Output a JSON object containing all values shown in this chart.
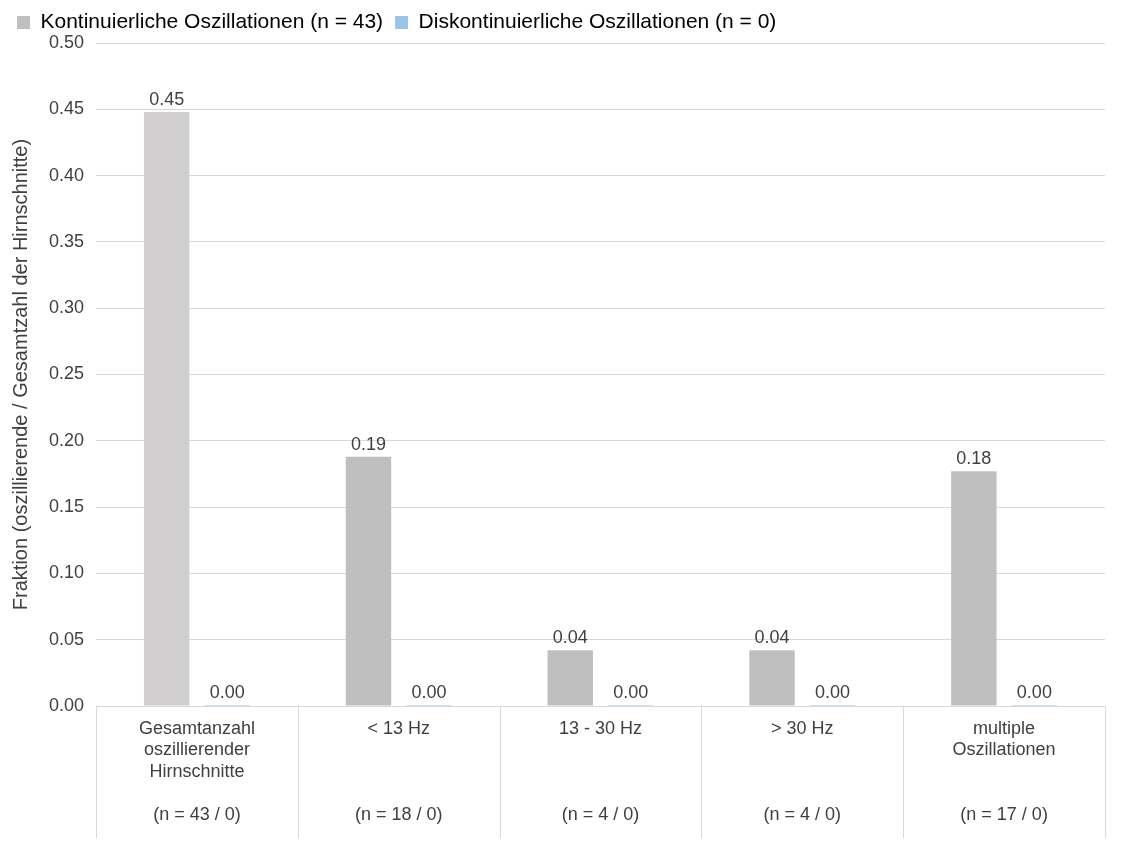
{
  "chart_data": {
    "type": "bar",
    "ylabel": "Fraktion (oszillierende / Gesamtzahl der Hirnschnitte)",
    "categories": [
      "Gesamtanzahl\noszillierender\nHirnschnitte\n(n = 43 / 0)",
      "< 13 Hz\n(n = 18 / 0)",
      "13 - 30 Hz\n(n = 4 / 0)",
      "> 30 Hz\n(n = 4 / 0)",
      "multiple\nOszillationen\n(n = 17 / 0)"
    ],
    "series": [
      {
        "name": "Kontinuierliche Oszillationen (n = 43)",
        "color": "#bfbfbf",
        "colors": [
          "#d0cece",
          "#bfbfbf",
          "#bfbfbf",
          "#bfbfbf",
          "#bfbfbf"
        ],
        "values": [
          0.448,
          0.188,
          0.042,
          0.042,
          0.177
        ],
        "value_labels": [
          "0.45",
          "0.19",
          "0.04",
          "0.04",
          "0.18"
        ]
      },
      {
        "name": "Diskontinuierliche Oszillationen (n = 0)",
        "color": "#9dc3e6",
        "values": [
          0,
          0,
          0,
          0,
          0
        ],
        "value_labels": [
          "0.00",
          "0.00",
          "0.00",
          "0.00",
          "0.00"
        ]
      }
    ],
    "ylim": [
      0,
      0.5
    ],
    "yticks": [
      {
        "value": 0,
        "label": "0.00"
      },
      {
        "value": 0.05,
        "label": "0.05"
      },
      {
        "value": 0.1,
        "label": "0.10"
      },
      {
        "value": 0.15,
        "label": "0.15"
      },
      {
        "value": 0.2,
        "label": "0.20"
      },
      {
        "value": 0.25,
        "label": "0.25"
      },
      {
        "value": 0.3,
        "label": "0.30"
      },
      {
        "value": 0.35,
        "label": "0.35"
      },
      {
        "value": 0.4,
        "label": "0.40"
      },
      {
        "value": 0.45,
        "label": "0.45"
      },
      {
        "value": 0.5,
        "label": "0.50"
      }
    ],
    "grid": "y",
    "legend": "top left"
  }
}
